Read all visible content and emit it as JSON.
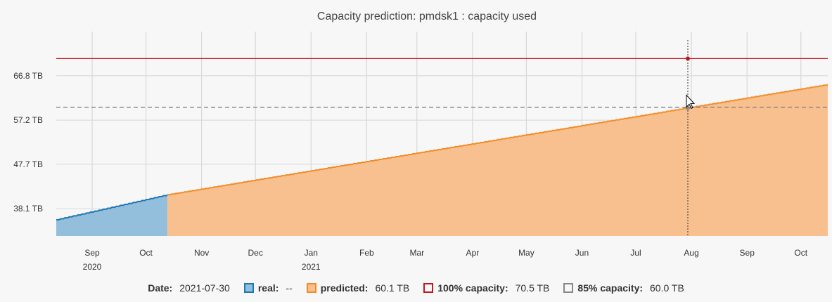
{
  "chart_data": {
    "type": "area",
    "title": "Capacity prediction: pmdsk1 : capacity used",
    "x_ticks": [
      {
        "label": "Sep",
        "date": "2020-09-01",
        "year": "2020"
      },
      {
        "label": "Oct",
        "date": "2020-10-01"
      },
      {
        "label": "Nov",
        "date": "2020-11-01"
      },
      {
        "label": "Dec",
        "date": "2020-12-01"
      },
      {
        "label": "Jan",
        "date": "2021-01-01",
        "year": "2021"
      },
      {
        "label": "Feb",
        "date": "2021-02-01"
      },
      {
        "label": "Mar",
        "date": "2021-03-01"
      },
      {
        "label": "Apr",
        "date": "2021-04-01"
      },
      {
        "label": "May",
        "date": "2021-05-01"
      },
      {
        "label": "Jun",
        "date": "2021-06-01"
      },
      {
        "label": "Jul",
        "date": "2021-07-01"
      },
      {
        "label": "Aug",
        "date": "2021-08-01"
      },
      {
        "label": "Sep",
        "date": "2021-09-01"
      },
      {
        "label": "Oct",
        "date": "2021-10-01"
      }
    ],
    "y_ticks": [
      {
        "label": "38.1 TB",
        "value": 38.1
      },
      {
        "label": "47.7 TB",
        "value": 47.7
      },
      {
        "label": "57.2 TB",
        "value": 57.2
      },
      {
        "label": "66.8 TB",
        "value": 66.8
      }
    ],
    "xlim": [
      "2020-08-12",
      "2021-10-16"
    ],
    "ylim": [
      32.2,
      74.5
    ],
    "grid": true,
    "series": [
      {
        "name": "real",
        "color": "#1f77b4",
        "fill": "#94bfdc",
        "points": [
          [
            "2020-08-12",
            35.7
          ],
          [
            "2020-10-13",
            41.1
          ]
        ]
      },
      {
        "name": "predicted",
        "color": "#f28c28",
        "fill": "#f9c08f",
        "points": [
          [
            "2020-10-13",
            41.1
          ],
          [
            "2021-10-16",
            64.9
          ]
        ]
      }
    ],
    "thresholds": [
      {
        "name": "100% capacity",
        "value": 70.5,
        "color": "#c0181e",
        "style": "solid"
      },
      {
        "name": "85% capacity",
        "value": 60.0,
        "color": "#777777",
        "style": "dashed"
      }
    ],
    "cursor": {
      "date": "2021-07-30"
    }
  },
  "legend": {
    "date_label": "Date:",
    "date_value": "2021-07-30",
    "real_label": "real:",
    "real_value": "--",
    "predicted_label": "predicted:",
    "predicted_value": "60.1 TB",
    "cap100_label": "100% capacity:",
    "cap100_value": "70.5 TB",
    "cap85_label": "85% capacity:",
    "cap85_value": "60.0 TB"
  }
}
